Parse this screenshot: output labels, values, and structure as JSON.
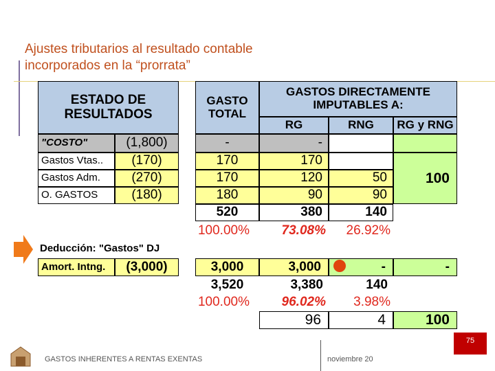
{
  "header": {
    "title_lines": [
      "Ajustes tributarios al resultado contable",
      "incorporados en la “prorrata”"
    ]
  },
  "left_table": {
    "header": "ESTADO DE RESULTADOS",
    "rows": [
      [
        "\"COSTO\"",
        "(1,800)"
      ],
      [
        "Gastos Vtas..",
        "(170)"
      ],
      [
        "Gastos Adm.",
        "(270)"
      ],
      [
        "O. GASTOS",
        "(180)"
      ]
    ]
  },
  "right_table": {
    "header_total": "GASTO TOTAL",
    "header_group": "GASTOS DIRECTAMENTE IMPUTABLES A:",
    "columns": [
      "RG",
      "RNG",
      "RG y RNG"
    ],
    "rows": [
      [
        "-",
        "-"
      ],
      [
        "170",
        "170"
      ],
      [
        "170",
        "120",
        "50"
      ],
      [
        "180",
        "90",
        "90"
      ]
    ],
    "rg_rng_value": "100",
    "total": [
      "520",
      "380",
      "140"
    ],
    "percent": [
      "100.00%",
      "73.08%",
      "26.92%"
    ]
  },
  "deduction": {
    "title": "Deducción: \"Gastos\" DJ",
    "label": "Amort. Intng.",
    "value": "(3,000)",
    "row": [
      "3,000",
      "3,000",
      "-",
      "-"
    ],
    "total": [
      "3,520",
      "3,380",
      "140"
    ],
    "percent": [
      "100.00%",
      "96.02%",
      "3.98%"
    ]
  },
  "final_row": [
    "96",
    "4",
    "100"
  ],
  "footer": {
    "text": "GASTOS INHERENTES A RENTAS EXENTAS",
    "date": "noviembre 20",
    "page": "75"
  }
}
